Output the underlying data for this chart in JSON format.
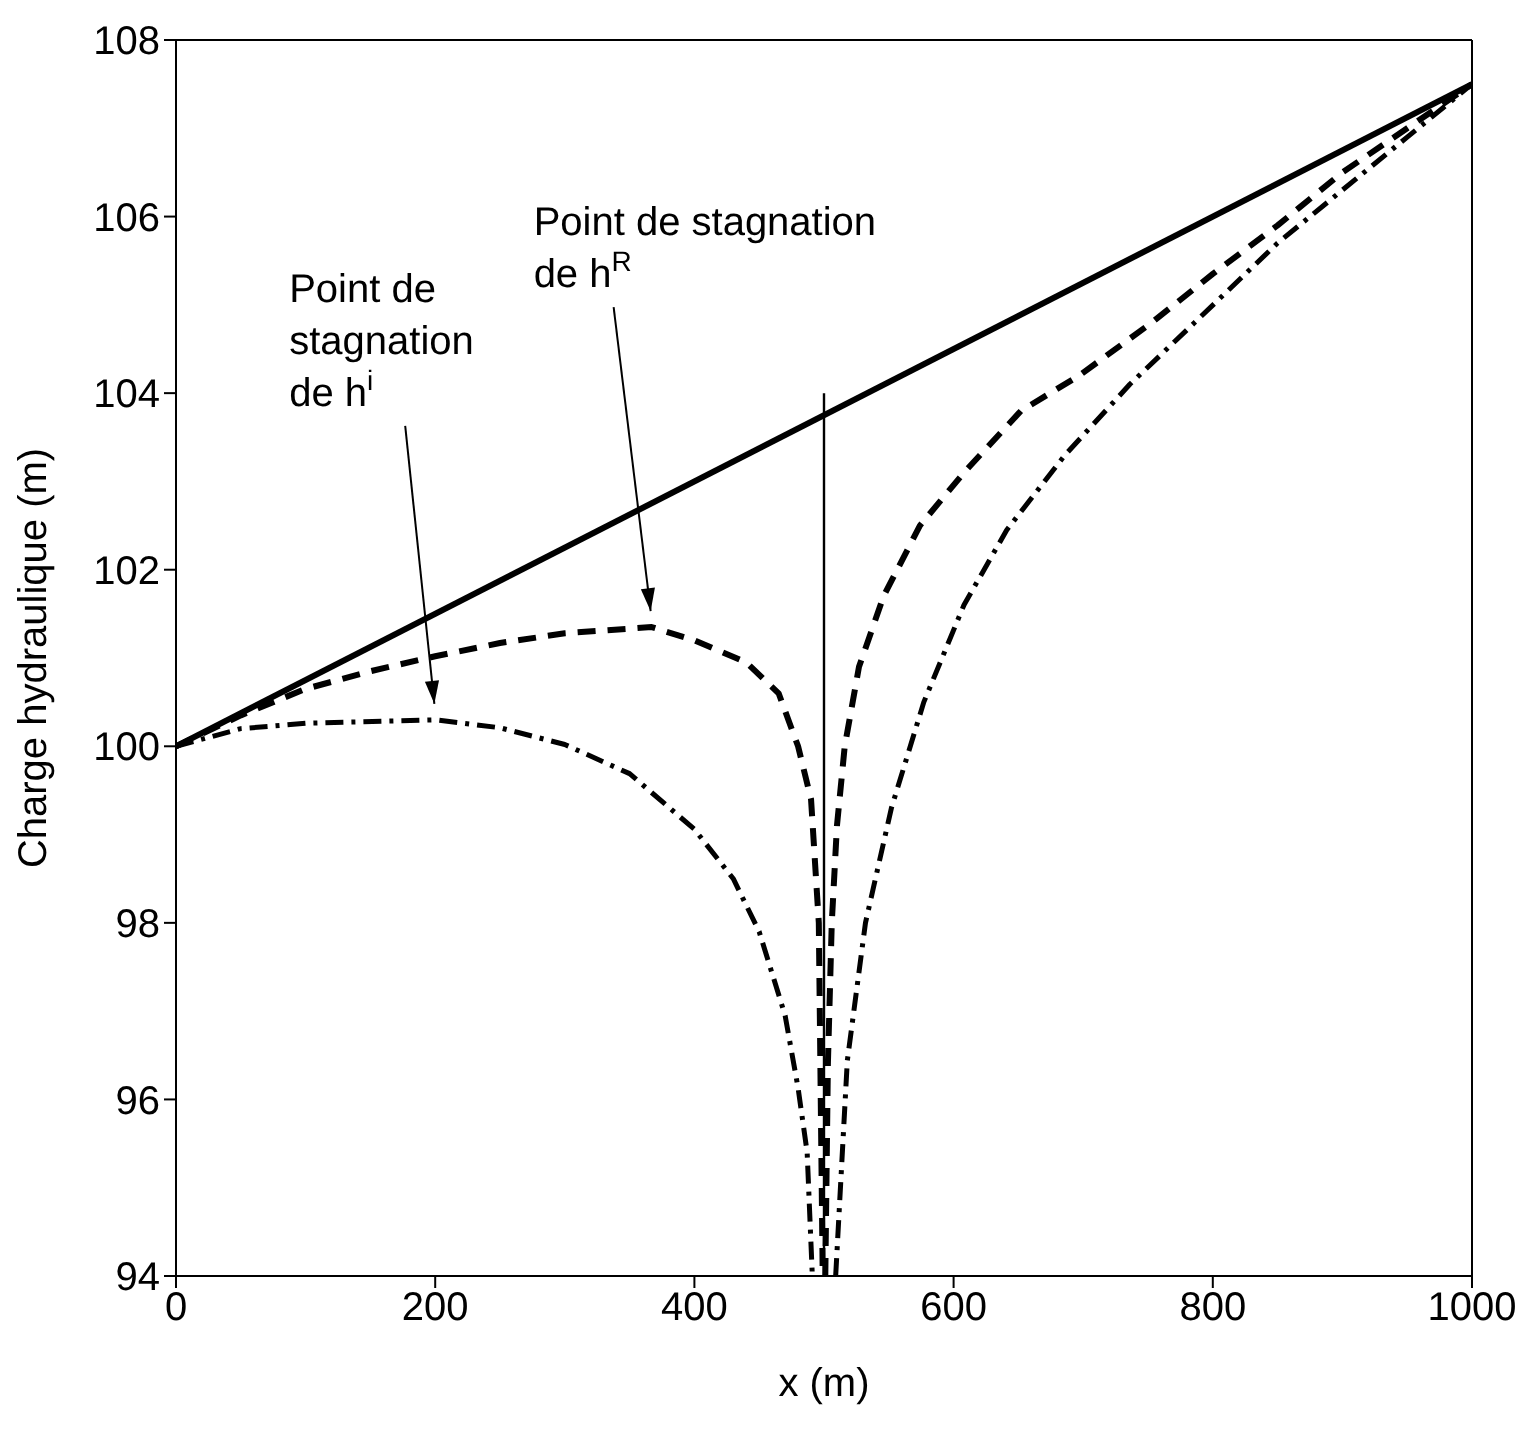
{
  "chart_data": {
    "type": "line",
    "xlabel": "x (m)",
    "ylabel": "Charge hydraulique (m)",
    "xlim": [
      0,
      1000
    ],
    "ylim": [
      94,
      108
    ],
    "xticks": [
      0,
      200,
      400,
      600,
      800,
      1000
    ],
    "yticks": [
      94,
      96,
      98,
      100,
      102,
      104,
      106,
      108
    ],
    "grid": false,
    "legend": false,
    "marker": "none",
    "series": [
      {
        "color": "#000000",
        "line_style": "solid",
        "x": [
          0,
          1000
        ],
        "values": [
          100,
          107.5
        ]
      },
      {
        "color": "#000000",
        "line_style": "dashed",
        "x": [
          0,
          50,
          100,
          150,
          200,
          250,
          300,
          367,
          400,
          440,
          465,
          480,
          490,
          496,
          499
        ],
        "values": [
          100,
          100.35,
          100.65,
          100.85,
          101.02,
          101.17,
          101.28,
          101.35,
          101.2,
          100.95,
          100.6,
          100,
          99.4,
          98,
          94
        ]
      },
      {
        "color": "#000000",
        "line_style": "dashed",
        "x": [
          501,
          503,
          506,
          510,
          516,
          527,
          546,
          574,
          608,
          652,
          697,
          753,
          800,
          850,
          900,
          950,
          1000
        ],
        "values": [
          94,
          96.4,
          98,
          99.1,
          100,
          100.9,
          101.7,
          102.5,
          103.1,
          103.8,
          104.2,
          104.8,
          105.35,
          105.9,
          106.5,
          107,
          107.5
        ]
      },
      {
        "color": "#000000",
        "line_style": "dashdot",
        "x": [
          0,
          50,
          100,
          200,
          250,
          300,
          350,
          400,
          430,
          450,
          470,
          480,
          487,
          491
        ],
        "values": [
          100,
          100.2,
          100.26,
          100.3,
          100.21,
          100.02,
          99.69,
          99.06,
          98.5,
          97.9,
          96.95,
          96.13,
          95.4,
          94
        ]
      },
      {
        "color": "#000000",
        "line_style": "dashdot",
        "x": [
          509,
          518,
          532,
          552,
          577,
          608,
          641,
          686,
          736,
          786,
          850,
          900,
          950,
          1000
        ],
        "values": [
          94,
          96.44,
          98,
          99.3,
          100.5,
          101.6,
          102.45,
          103.3,
          104.1,
          104.8,
          105.7,
          106.3,
          106.9,
          107.5
        ]
      },
      {
        "color": "#000000",
        "line_style": "solid",
        "x": [
          500,
          500
        ],
        "values": [
          94,
          104
        ]
      }
    ],
    "annotations": [
      {
        "text": "Point de stagnation\nde h$^{R}$",
        "x": 367,
        "y": 101.35
      },
      {
        "text": "Point de\nstagnation\nde h$^{i}$",
        "x": 200,
        "y": 100.3
      }
    ]
  }
}
